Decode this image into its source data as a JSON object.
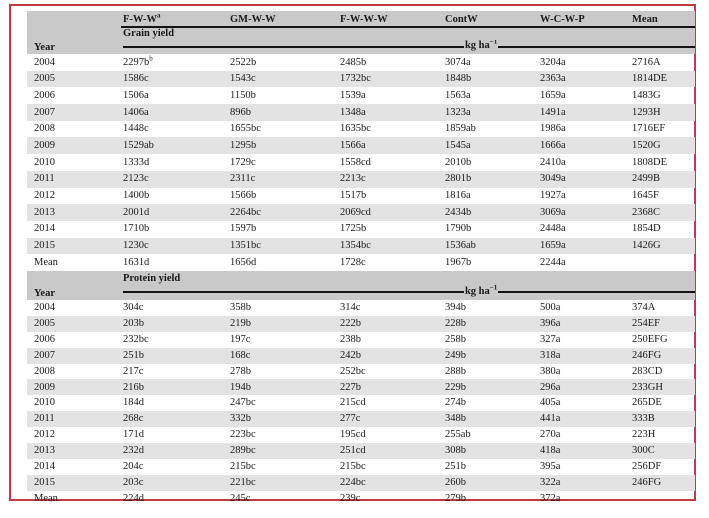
{
  "colors": {
    "frame_border": "#c23b42",
    "header_bg": "#c9c9c9",
    "alt_row_bg": "#e3e3e3",
    "text": "#1a1a1a"
  },
  "table": {
    "year_label": "Year",
    "columns": [
      "F-W-W^a",
      "GM-W-W",
      "F-W-W-W",
      "ContW",
      "W-C-W-P",
      "Mean"
    ],
    "unit": "kg ha^−1",
    "sections": [
      {
        "title": "Grain yield",
        "rows": [
          {
            "year": "2004",
            "values": [
              "2297b^b",
              "2522b",
              "2485b",
              "3074a",
              "3204a",
              "2716A"
            ]
          },
          {
            "year": "2005",
            "values": [
              "1586c",
              "1543c",
              "1732bc",
              "1848b",
              "2363a",
              "1814DE"
            ]
          },
          {
            "year": "2006",
            "values": [
              "1506a",
              "1150b",
              "1539a",
              "1563a",
              "1659a",
              "1483G"
            ]
          },
          {
            "year": "2007",
            "values": [
              "1406a",
              "896b",
              "1348a",
              "1323a",
              "1491a",
              "1293H"
            ]
          },
          {
            "year": "2008",
            "values": [
              "1448c",
              "1655bc",
              "1635bc",
              "1859ab",
              "1986a",
              "1716EF"
            ]
          },
          {
            "year": "2009",
            "values": [
              "1529ab",
              "1295b",
              "1566a",
              "1545a",
              "1666a",
              "1520G"
            ]
          },
          {
            "year": "2010",
            "values": [
              "1333d",
              "1729c",
              "1558cd",
              "2010b",
              "2410a",
              "1808DE"
            ]
          },
          {
            "year": "2011",
            "values": [
              "2123c",
              "2311c",
              "2213c",
              "2801b",
              "3049a",
              "2499B"
            ]
          },
          {
            "year": "2012",
            "values": [
              "1400b",
              "1566b",
              "1517b",
              "1816a",
              "1927a",
              "1645F"
            ]
          },
          {
            "year": "2013",
            "values": [
              "2001d",
              "2264bc",
              "2069cd",
              "2434b",
              "3069a",
              "2368C"
            ]
          },
          {
            "year": "2014",
            "values": [
              "1710b",
              "1597b",
              "1725b",
              "1790b",
              "2448a",
              "1854D"
            ]
          },
          {
            "year": "2015",
            "values": [
              "1230c",
              "1351bc",
              "1354bc",
              "1536ab",
              "1659a",
              "1426G"
            ]
          },
          {
            "year": "Mean",
            "values": [
              "1631d",
              "1656d",
              "1728c",
              "1967b",
              "2244a",
              ""
            ]
          }
        ]
      },
      {
        "title": "Protein yield",
        "rows": [
          {
            "year": "2004",
            "values": [
              "304c",
              "358b",
              "314c",
              "394b",
              "500a",
              "374A"
            ]
          },
          {
            "year": "2005",
            "values": [
              "203b",
              "219b",
              "222b",
              "228b",
              "396a",
              "254EF"
            ]
          },
          {
            "year": "2006",
            "values": [
              "232bc",
              "197c",
              "238b",
              "258b",
              "327a",
              "250EFG"
            ]
          },
          {
            "year": "2007",
            "values": [
              "251b",
              "168c",
              "242b",
              "249b",
              "318a",
              "246FG"
            ]
          },
          {
            "year": "2008",
            "values": [
              "217c",
              "278b",
              "252bc",
              "288b",
              "380a",
              "283CD"
            ]
          },
          {
            "year": "2009",
            "values": [
              "216b",
              "194b",
              "227b",
              "229b",
              "296a",
              "233GH"
            ]
          },
          {
            "year": "2010",
            "values": [
              "184d",
              "247bc",
              "215cd",
              "274b",
              "405a",
              "265DE"
            ]
          },
          {
            "year": "2011",
            "values": [
              "268c",
              "332b",
              "277c",
              "348b",
              "441a",
              "333B"
            ]
          },
          {
            "year": "2012",
            "values": [
              "171d",
              "223bc",
              "195cd",
              "255ab",
              "270a",
              "223H"
            ]
          },
          {
            "year": "2013",
            "values": [
              "232d",
              "289bc",
              "251cd",
              "308b",
              "418a",
              "300C"
            ]
          },
          {
            "year": "2014",
            "values": [
              "204c",
              "215bc",
              "215bc",
              "251b",
              "395a",
              "256DF"
            ]
          },
          {
            "year": "2015",
            "values": [
              "203c",
              "221bc",
              "224bc",
              "260b",
              "322a",
              "246FG"
            ]
          },
          {
            "year": "Mean",
            "values": [
              "224d",
              "245c",
              "239c",
              "279b",
              "372a",
              ""
            ]
          }
        ]
      }
    ]
  }
}
